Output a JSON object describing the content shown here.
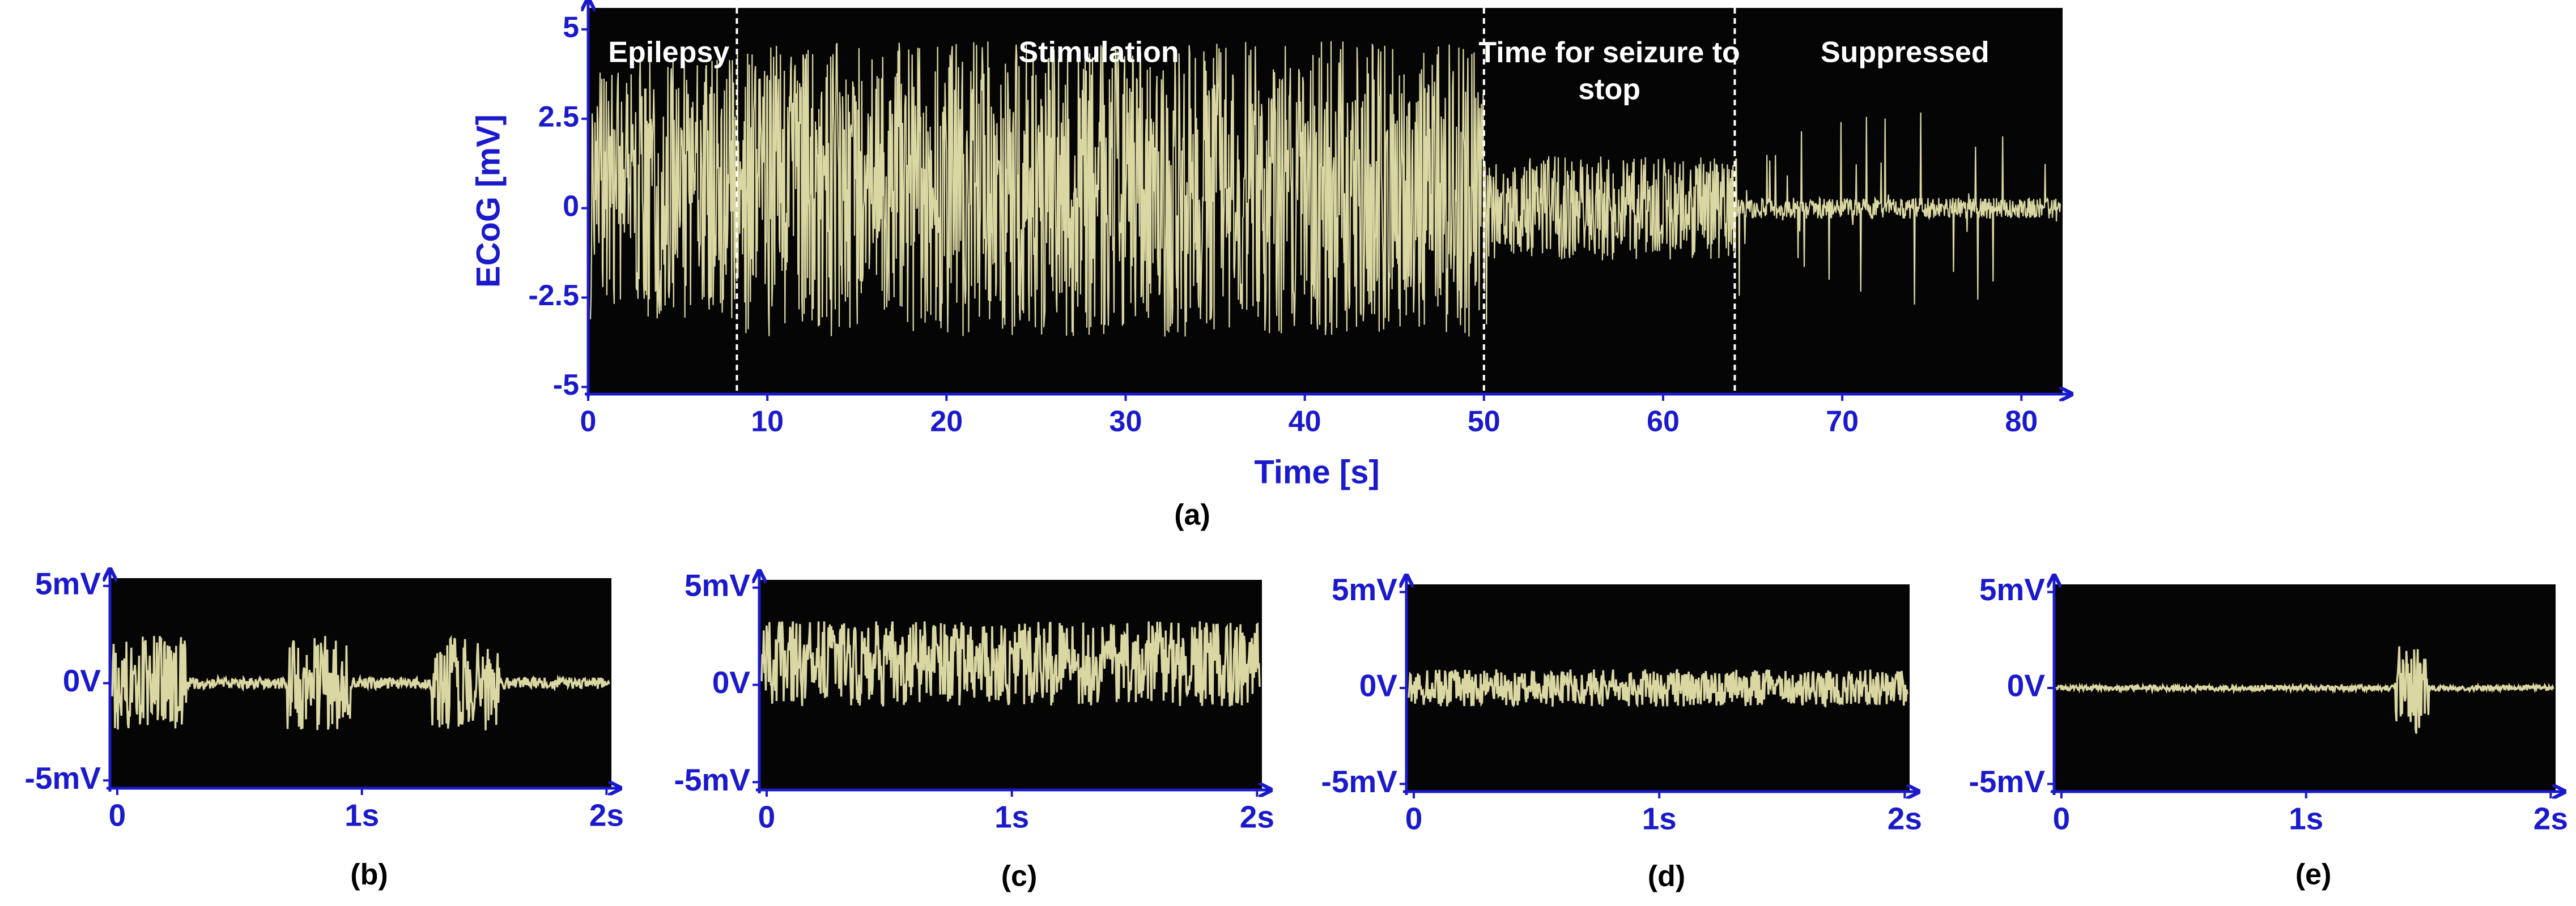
{
  "chart_data": [
    {
      "type": "trace",
      "caption": "(a)",
      "xlabel": "Time [s]",
      "ylabel": "ECoG [mV]",
      "xlim": [
        0,
        82.3
      ],
      "ylim": [
        -5.2,
        5.6
      ],
      "xticks": [
        0,
        10,
        20,
        30,
        40,
        50,
        60,
        70,
        80
      ],
      "yticks": [
        5,
        2.5,
        0,
        -2.5,
        -5
      ],
      "phase_boundaries": [
        8.3,
        50,
        64
      ],
      "annotations": [
        "Epilepsy",
        "Stimulation",
        "Time for seizure to stop",
        "Suppressed"
      ]
    },
    {
      "type": "trace",
      "caption": "(b)",
      "xlim": [
        -0.03,
        2.02
      ],
      "ylim": [
        -5.4,
        5.4
      ],
      "xticks": [
        {
          "value": 0,
          "label": "0"
        },
        {
          "value": 1,
          "label": "1s"
        },
        {
          "value": 2,
          "label": "2s"
        }
      ],
      "yticks": [
        {
          "value": 5,
          "label": "5mV"
        },
        {
          "value": 0,
          "label": "0V"
        },
        {
          "value": -5,
          "label": "-5mV"
        }
      ]
    },
    {
      "type": "trace",
      "caption": "(c)",
      "xlim": [
        -0.03,
        2.02
      ],
      "ylim": [
        -5.4,
        5.4
      ],
      "xticks": [
        {
          "value": 0,
          "label": "0"
        },
        {
          "value": 1,
          "label": "1s"
        },
        {
          "value": 2,
          "label": "2s"
        }
      ],
      "yticks": [
        {
          "value": 5,
          "label": "5mV"
        },
        {
          "value": 0,
          "label": "0V"
        },
        {
          "value": -5,
          "label": "-5mV"
        }
      ]
    },
    {
      "type": "trace",
      "caption": "(d)",
      "xlim": [
        -0.03,
        2.02
      ],
      "ylim": [
        -5.4,
        5.4
      ],
      "xticks": [
        {
          "value": 0,
          "label": "0"
        },
        {
          "value": 1,
          "label": "1s"
        },
        {
          "value": 2,
          "label": "2s"
        }
      ],
      "yticks": [
        {
          "value": 5,
          "label": "5mV"
        },
        {
          "value": 0,
          "label": "0V"
        },
        {
          "value": -5,
          "label": "-5mV"
        }
      ]
    },
    {
      "type": "trace",
      "caption": "(e)",
      "xlim": [
        -0.03,
        2.02
      ],
      "ylim": [
        -5.4,
        5.4
      ],
      "xticks": [
        {
          "value": 0,
          "label": "0"
        },
        {
          "value": 1,
          "label": "1s"
        },
        {
          "value": 2,
          "label": "2s"
        }
      ],
      "yticks": [
        {
          "value": 5,
          "label": "5mV"
        },
        {
          "value": 0,
          "label": "0V"
        },
        {
          "value": -5,
          "label": "-5mV"
        }
      ]
    }
  ]
}
